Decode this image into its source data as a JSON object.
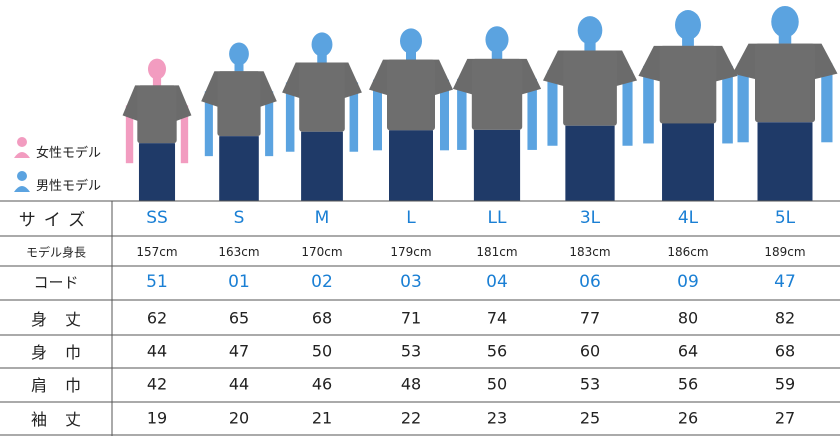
{
  "legend": {
    "female": "女性モデル",
    "male": "男性モデル"
  },
  "table": {
    "header": [
      "サイズ",
      "SS",
      "S",
      "M",
      "L",
      "LL",
      "3L",
      "4L",
      "5L"
    ],
    "rows": [
      [
        "モデル身長",
        "157cm",
        "163cm",
        "170cm",
        "179cm",
        "181cm",
        "183cm",
        "186cm",
        "189cm"
      ],
      [
        "コード",
        "51",
        "01",
        "02",
        "03",
        "04",
        "06",
        "09",
        "47"
      ],
      [
        "身丈",
        62,
        65,
        68,
        71,
        74,
        77,
        80,
        82
      ],
      [
        "身巾",
        44,
        47,
        50,
        53,
        56,
        60,
        64,
        68
      ],
      [
        "肩巾",
        42,
        44,
        46,
        48,
        50,
        53,
        56,
        59
      ],
      [
        "袖丈",
        19,
        20,
        21,
        22,
        23,
        25,
        26,
        27
      ]
    ]
  }
}
